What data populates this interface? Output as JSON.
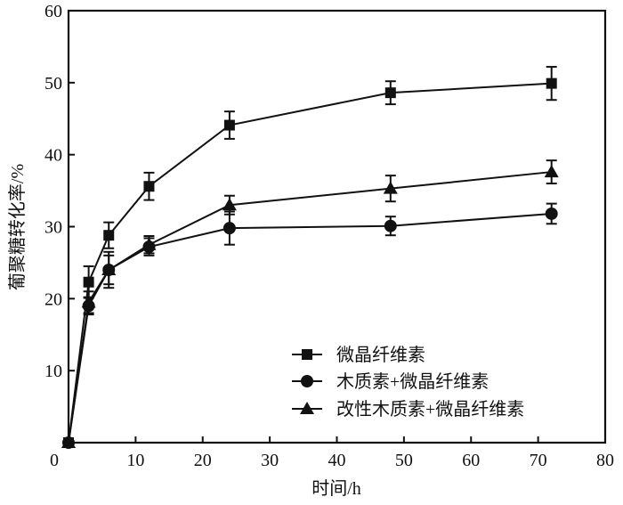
{
  "chart_data": {
    "type": "line",
    "title": "",
    "xlabel": "时间/h",
    "ylabel": "葡聚糖转化率/%",
    "xlim": [
      0,
      80
    ],
    "ylim": [
      0,
      60
    ],
    "xticks": [
      0,
      10,
      20,
      30,
      40,
      50,
      60,
      70,
      80
    ],
    "yticks": [
      10,
      20,
      30,
      40,
      50,
      60
    ],
    "grid": false,
    "legend_position": "bottom-right",
    "x": [
      0,
      3,
      6,
      12,
      24,
      48,
      72
    ],
    "series": [
      {
        "name": "微晶纤维素",
        "marker": "square",
        "values": [
          0,
          22.3,
          28.8,
          35.6,
          44.1,
          48.6,
          49.9
        ],
        "errors": [
          0,
          2.2,
          1.8,
          1.9,
          1.9,
          1.6,
          2.3
        ]
      },
      {
        "name": "木质素+微晶纤维素",
        "marker": "circle",
        "values": [
          0,
          19.0,
          24.0,
          27.2,
          29.8,
          30.1,
          31.8
        ],
        "errors": [
          0,
          1.2,
          2.0,
          1.2,
          2.3,
          1.3,
          1.4
        ]
      },
      {
        "name": "改性木质素+微晶纤维素",
        "marker": "triangle",
        "values": [
          0,
          19.5,
          24.0,
          27.5,
          33.0,
          35.3,
          37.6
        ],
        "errors": [
          0,
          1.5,
          2.5,
          1.2,
          1.3,
          1.8,
          1.6
        ]
      }
    ]
  }
}
